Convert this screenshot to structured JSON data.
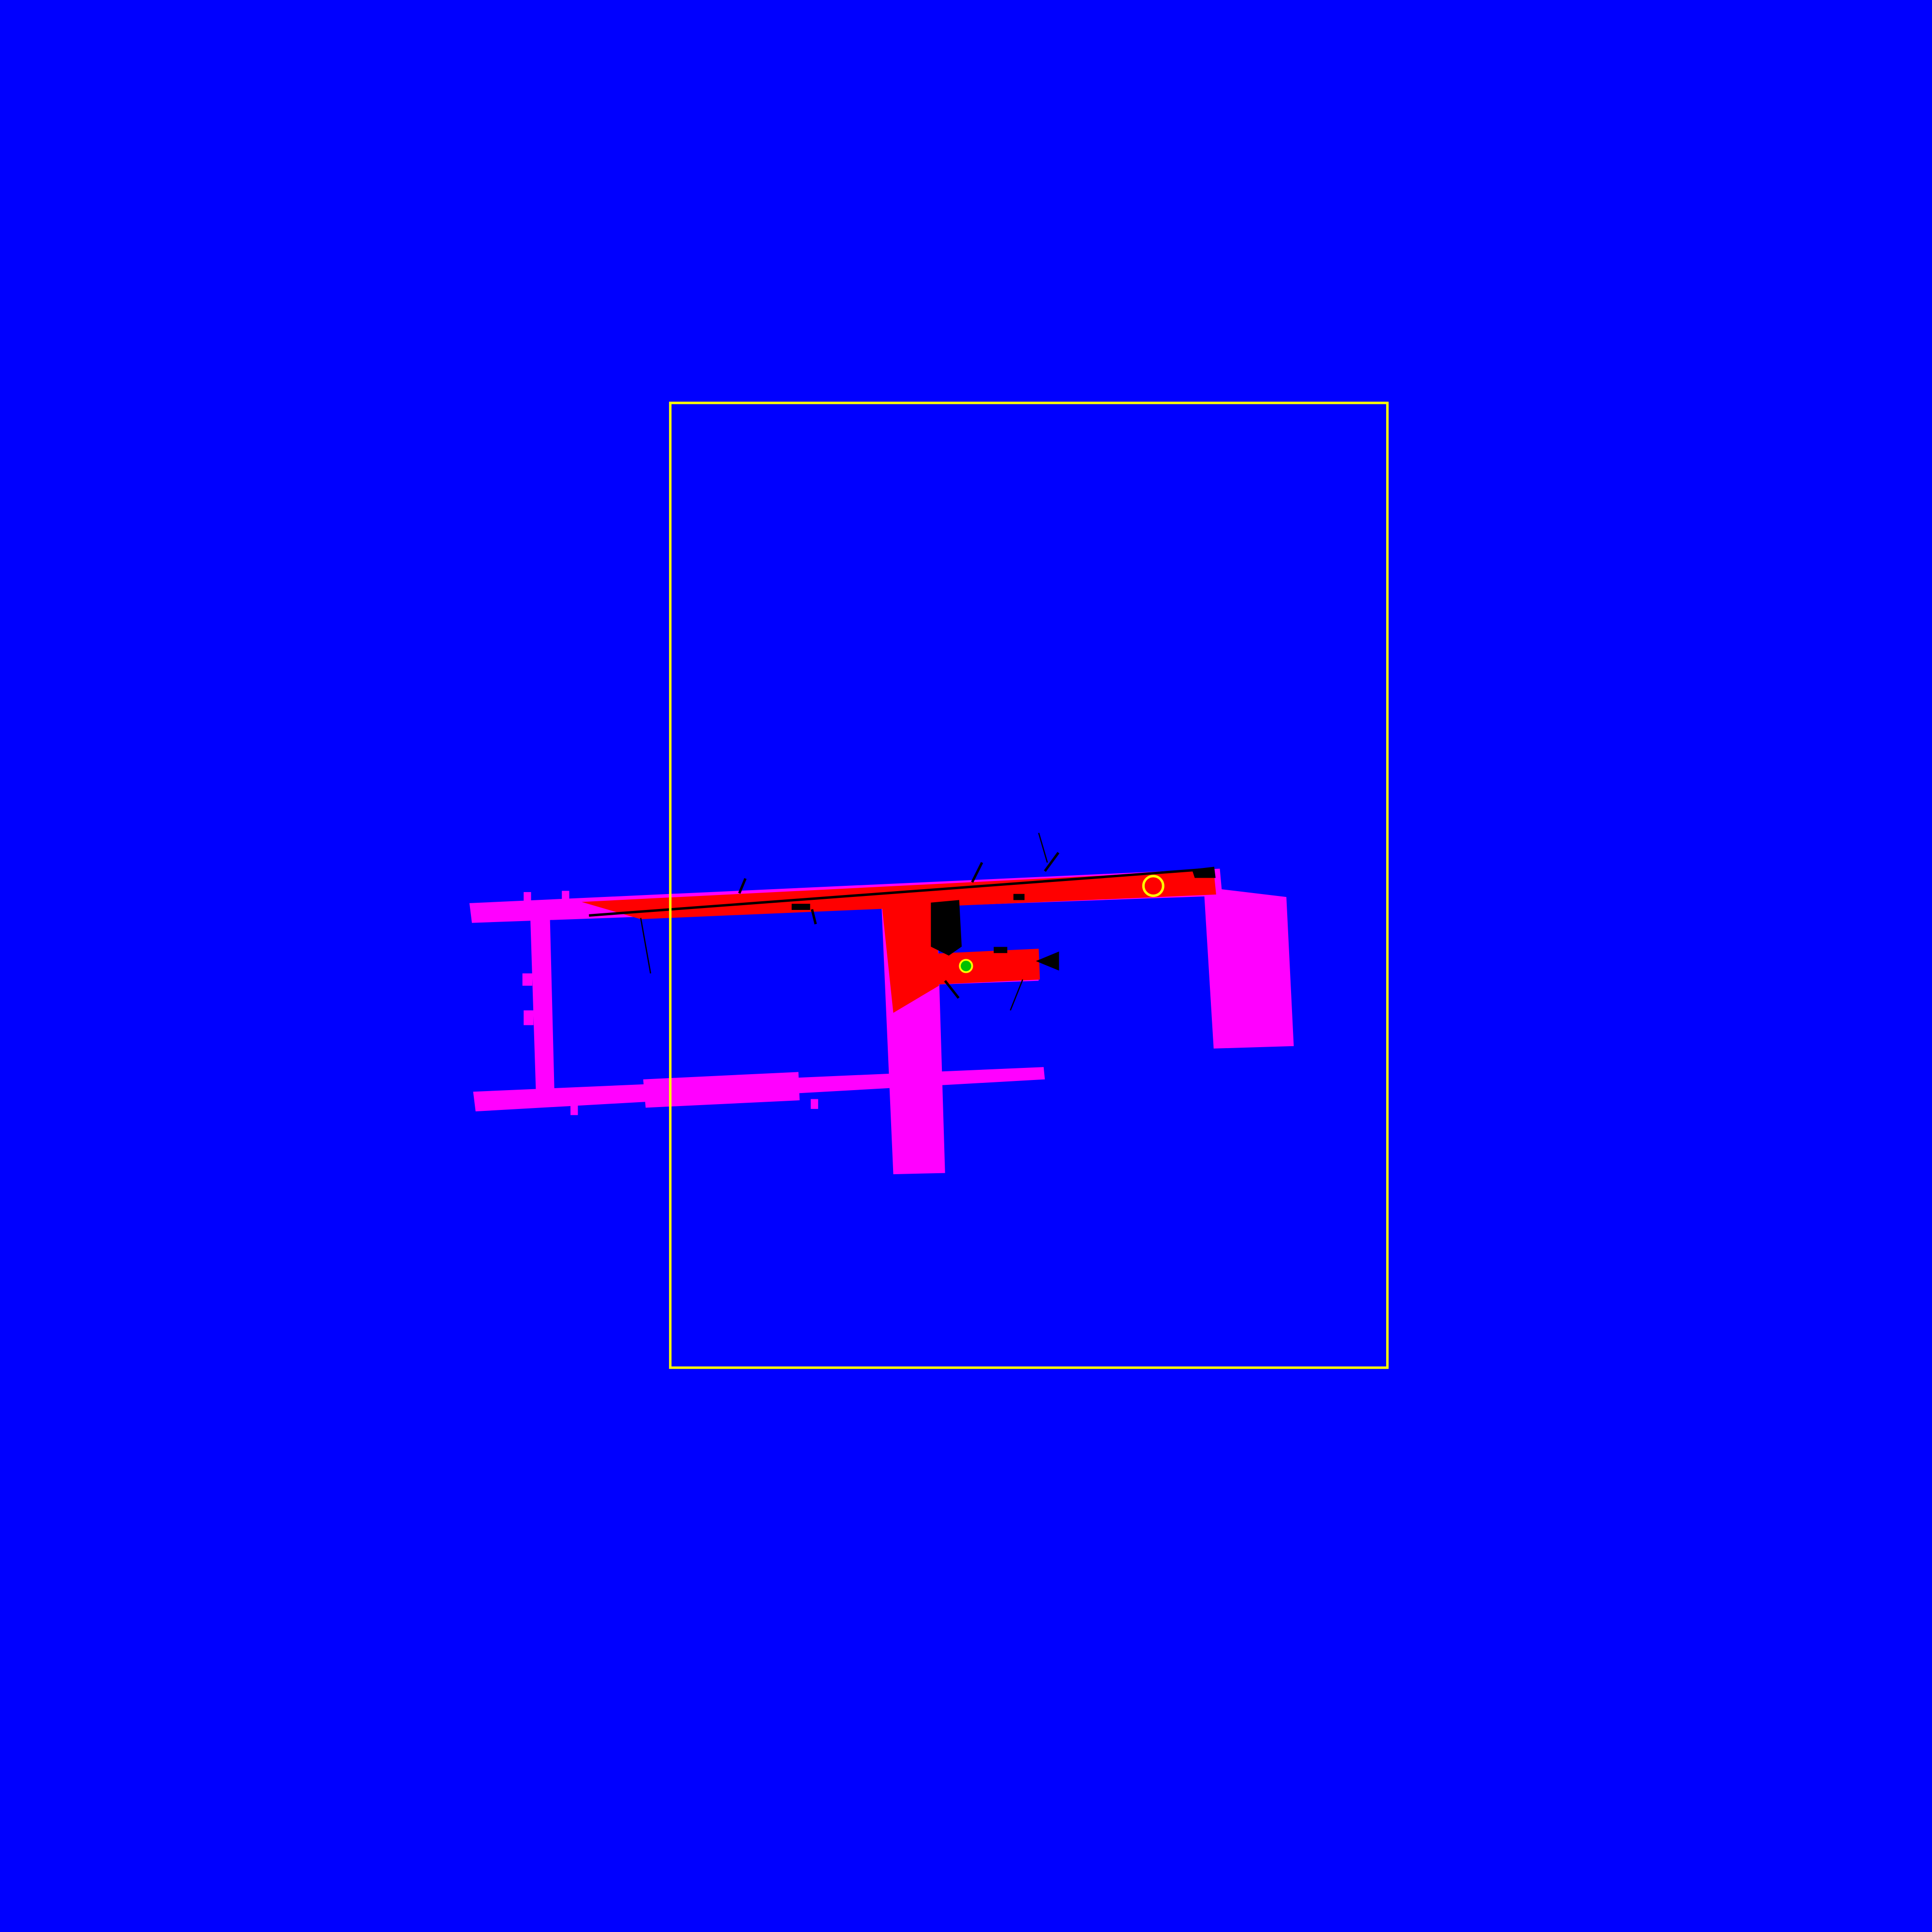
{
  "map": {
    "background_color": "#0000ff",
    "unexplored_color": "#ff00ff",
    "explored_color": "#ff0000",
    "obstacle_color": "#000000",
    "viewport_color": "#ffff00",
    "agent_color": "#00c000",
    "goal_color": "#ffff00",
    "labels": []
  }
}
